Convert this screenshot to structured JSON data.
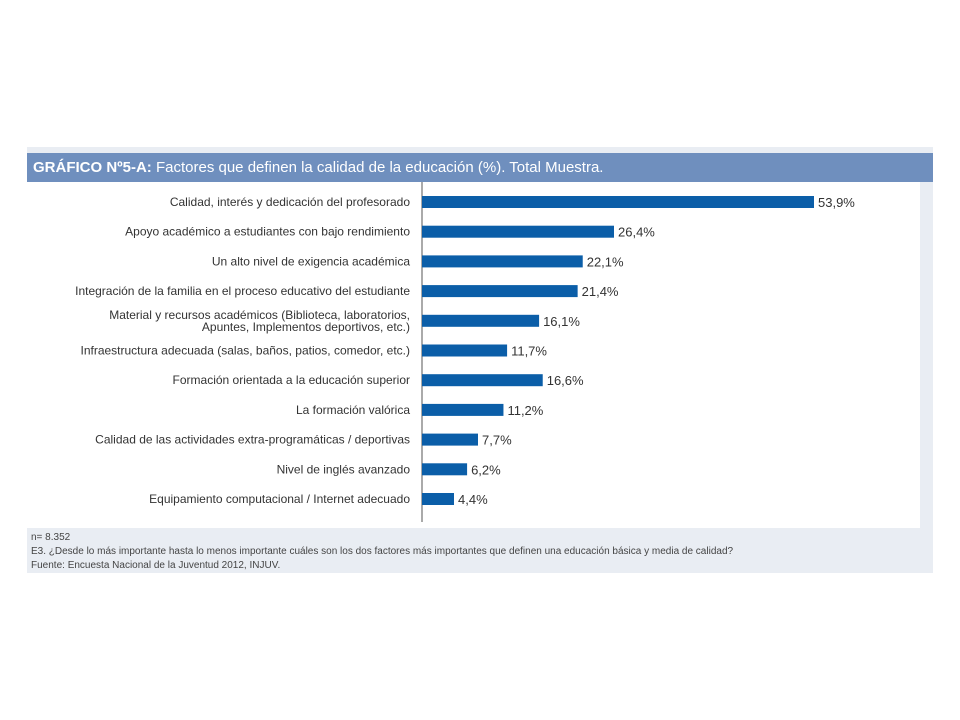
{
  "title": {
    "prefix": "GRÁFICO Nº5-A:",
    "text": " Factores que definen la calidad de la educación (%). Total Muestra."
  },
  "notes": {
    "n": "n= 8.352",
    "question": "E3. ¿Desde lo más importante hasta lo menos importante cuáles son los dos factores más importantes que definen una educación básica y media de calidad?",
    "source": "Fuente: Encuesta Nacional de la Juventud 2012, INJUV."
  },
  "colors": {
    "bar": "#0b5ea8",
    "title_bg": "#6f8fbe",
    "axis": "#555555"
  },
  "chart_data": {
    "type": "bar",
    "orientation": "horizontal",
    "categories": [
      "Calidad, interés y dedicación del profesorado",
      "Apoyo académico a estudiantes con bajo rendimiento",
      "Un alto nivel de exigencia académica",
      "Integración de la familia en el proceso educativo del estudiante",
      "Material y recursos académicos (Biblioteca, laboratorios,|Apuntes, Implementos deportivos, etc.)",
      "Infraestructura adecuada (salas, baños, patios, comedor, etc.)",
      "Formación orientada a la educación superior",
      "La formación valórica",
      "Calidad de las actividades extra-programáticas / deportivas",
      "Nivel de inglés avanzado",
      "Equipamiento computacional / Internet adecuado"
    ],
    "values": [
      53.9,
      26.4,
      22.1,
      21.4,
      16.1,
      11.7,
      16.6,
      11.2,
      7.7,
      6.2,
      4.4
    ],
    "labels": [
      "53,9%",
      "26,4%",
      "22,1%",
      "21,4%",
      "16,1%",
      "11,7%",
      "16,6%",
      "11,2%",
      "7,7%",
      "6,2%",
      "4,4%"
    ],
    "xlim": [
      0,
      60
    ],
    "grid": false,
    "legend": "none"
  }
}
